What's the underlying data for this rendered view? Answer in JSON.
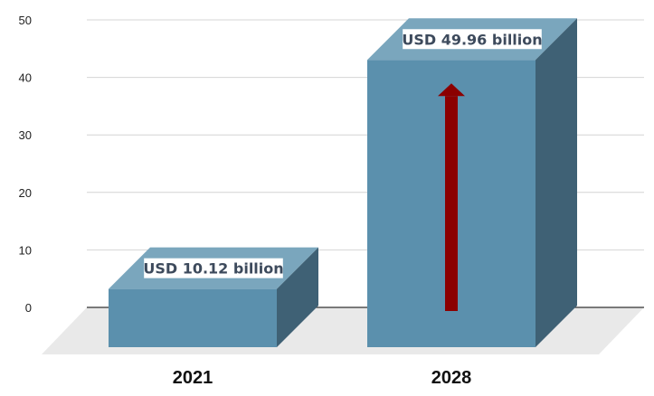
{
  "chart_data": {
    "type": "bar",
    "categories": [
      "2021",
      "2028"
    ],
    "values": [
      10.12,
      49.96
    ],
    "data_labels": [
      "USD 10.12 billion",
      "USD 49.96 billion"
    ],
    "y_ticks": [
      "0",
      "10",
      "20",
      "30",
      "40",
      "50"
    ],
    "ylim": [
      0,
      50
    ],
    "grid": true,
    "legend": "none",
    "three_d": true,
    "annotation": "upward-arrow",
    "colors": {
      "bar_front": "#5b90ad",
      "bar_top": "#7aa6bd",
      "bar_side": "#3f6175",
      "floor": "#e9e9e9",
      "grid": "#d4d4d4",
      "axis": "#333333",
      "arrow": "#8b0000",
      "label_bg": "#ffffff",
      "label_text": "#3d4a5c"
    }
  }
}
